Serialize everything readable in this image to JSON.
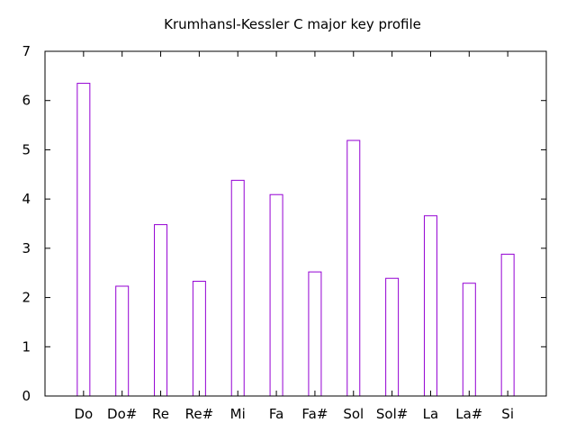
{
  "chart_data": {
    "type": "bar",
    "title": "Krumhansl-Kessler C major key profile",
    "xlabel": "",
    "ylabel": "",
    "categories": [
      "Do",
      "Do#",
      "Re",
      "Re#",
      "Mi",
      "Fa",
      "Fa#",
      "Sol",
      "Sol#",
      "La",
      "La#",
      "Si"
    ],
    "values": [
      6.35,
      2.23,
      3.48,
      2.33,
      4.38,
      4.09,
      2.52,
      5.19,
      2.39,
      3.66,
      2.29,
      2.88
    ],
    "ylim": [
      0,
      7
    ],
    "yticks": [
      "0",
      "1",
      "2",
      "3",
      "4",
      "5",
      "6",
      "7"
    ],
    "grid": false,
    "bar_color": "#9400d3"
  }
}
